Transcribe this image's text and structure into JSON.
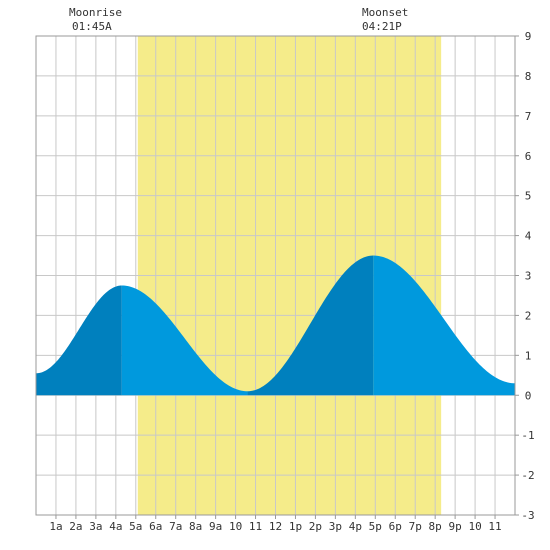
{
  "colors": {
    "daylight": "#f5ec8a",
    "tide_dark": "#0080be",
    "tide_light": "#0099dd",
    "grid": "#c8c8c8",
    "frame": "#999999"
  },
  "moon": {
    "rise_label": "Moonrise",
    "rise_time": "01:45A",
    "set_label": "Moonset",
    "set_time": "04:21P"
  },
  "chart_data": {
    "type": "area",
    "title": "",
    "xlabel": "",
    "ylabel": "",
    "xlim": [
      0,
      24
    ],
    "ylim": [
      -3,
      9
    ],
    "grid": true,
    "x_tick_labels": [
      "1a",
      "2a",
      "3a",
      "4a",
      "5a",
      "6a",
      "7a",
      "8a",
      "9a",
      "10",
      "11",
      "12",
      "1p",
      "2p",
      "3p",
      "4p",
      "5p",
      "6p",
      "7p",
      "8p",
      "9p",
      "10",
      "11"
    ],
    "y_tick_labels": [
      "9",
      "8",
      "7",
      "6",
      "5",
      "4",
      "3",
      "2",
      "1",
      "0",
      "-1",
      "-2",
      "-3"
    ],
    "daylight_hours": [
      5.1,
      20.3
    ],
    "moonrise_hour": 1.75,
    "moonset_hour": 16.35,
    "tide_extremes": [
      {
        "hour": 0.0,
        "height": 0.55
      },
      {
        "hour": 4.3,
        "height": 2.75
      },
      {
        "hour": 10.6,
        "height": 0.1
      },
      {
        "hour": 16.9,
        "height": 3.5
      },
      {
        "hour": 24.0,
        "height": 0.3
      }
    ],
    "shade_change_hours": [
      4.3,
      10.6,
      16.9
    ]
  }
}
